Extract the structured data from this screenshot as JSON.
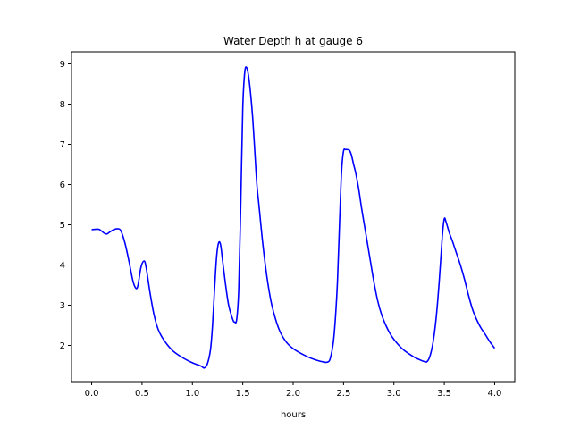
{
  "chart_data": {
    "type": "line",
    "title": "Water Depth h at gauge 6",
    "xlabel": "hours",
    "ylabel": "",
    "xlim": [
      -0.2,
      4.2
    ],
    "ylim": [
      1.1,
      9.3
    ],
    "xticks": [
      0.0,
      0.5,
      1.0,
      1.5,
      2.0,
      2.5,
      3.0,
      3.5,
      4.0
    ],
    "xtick_labels": [
      "0.0",
      "0.5",
      "1.0",
      "1.5",
      "2.0",
      "2.5",
      "3.0",
      "3.5",
      "4.0"
    ],
    "yticks": [
      2,
      3,
      4,
      5,
      6,
      7,
      8,
      9
    ],
    "ytick_labels": [
      "2",
      "3",
      "4",
      "5",
      "6",
      "7",
      "8",
      "9"
    ],
    "grid": false,
    "series": [
      {
        "color": "#0000ff",
        "x": [
          0.0,
          0.05,
          0.08,
          0.12,
          0.15,
          0.18,
          0.22,
          0.26,
          0.29,
          0.33,
          0.37,
          0.41,
          0.44,
          0.46,
          0.49,
          0.52,
          0.54,
          0.58,
          0.62,
          0.66,
          0.7,
          0.75,
          0.8,
          0.85,
          0.9,
          0.95,
          1.0,
          1.05,
          1.09,
          1.12,
          1.15,
          1.18,
          1.2,
          1.22,
          1.24,
          1.26,
          1.28,
          1.3,
          1.33,
          1.36,
          1.4,
          1.42,
          1.44,
          1.46,
          1.48,
          1.5,
          1.52,
          1.54,
          1.56,
          1.58,
          1.6,
          1.62,
          1.64,
          1.66,
          1.7,
          1.74,
          1.78,
          1.82,
          1.86,
          1.9,
          1.95,
          2.0,
          2.05,
          2.1,
          2.15,
          2.2,
          2.25,
          2.3,
          2.33,
          2.36,
          2.38,
          2.4,
          2.42,
          2.44,
          2.46,
          2.48,
          2.5,
          2.52,
          2.54,
          2.56,
          2.58,
          2.6,
          2.62,
          2.65,
          2.68,
          2.72,
          2.76,
          2.8,
          2.84,
          2.88,
          2.92,
          2.96,
          3.0,
          3.05,
          3.1,
          3.15,
          3.2,
          3.25,
          3.3,
          3.33,
          3.36,
          3.39,
          3.42,
          3.45,
          3.48,
          3.5,
          3.52,
          3.55,
          3.58,
          3.62,
          3.66,
          3.7,
          3.74,
          3.78,
          3.82,
          3.86,
          3.9,
          3.95,
          4.0
        ],
        "y": [
          4.88,
          4.89,
          4.88,
          4.8,
          4.77,
          4.82,
          4.88,
          4.9,
          4.85,
          4.55,
          4.1,
          3.6,
          3.42,
          3.5,
          3.95,
          4.1,
          3.95,
          3.3,
          2.75,
          2.4,
          2.2,
          2.02,
          1.88,
          1.78,
          1.7,
          1.63,
          1.57,
          1.52,
          1.48,
          1.44,
          1.55,
          1.9,
          2.5,
          3.4,
          4.2,
          4.55,
          4.5,
          4.1,
          3.5,
          3.0,
          2.65,
          2.58,
          2.65,
          3.4,
          5.5,
          7.9,
          8.8,
          8.9,
          8.65,
          8.2,
          7.6,
          6.8,
          6.0,
          5.5,
          4.5,
          3.7,
          3.1,
          2.7,
          2.4,
          2.2,
          2.03,
          1.92,
          1.84,
          1.77,
          1.71,
          1.66,
          1.62,
          1.59,
          1.58,
          1.62,
          1.8,
          2.1,
          2.7,
          3.6,
          5.0,
          6.3,
          6.83,
          6.87,
          6.87,
          6.85,
          6.72,
          6.5,
          6.3,
          5.9,
          5.4,
          4.8,
          4.2,
          3.6,
          3.1,
          2.75,
          2.5,
          2.3,
          2.15,
          2.0,
          1.88,
          1.79,
          1.71,
          1.65,
          1.6,
          1.6,
          1.75,
          2.1,
          2.7,
          3.6,
          4.7,
          5.15,
          5.05,
          4.8,
          4.6,
          4.3,
          4.0,
          3.65,
          3.25,
          2.9,
          2.65,
          2.45,
          2.3,
          2.1,
          1.93
        ]
      }
    ]
  }
}
